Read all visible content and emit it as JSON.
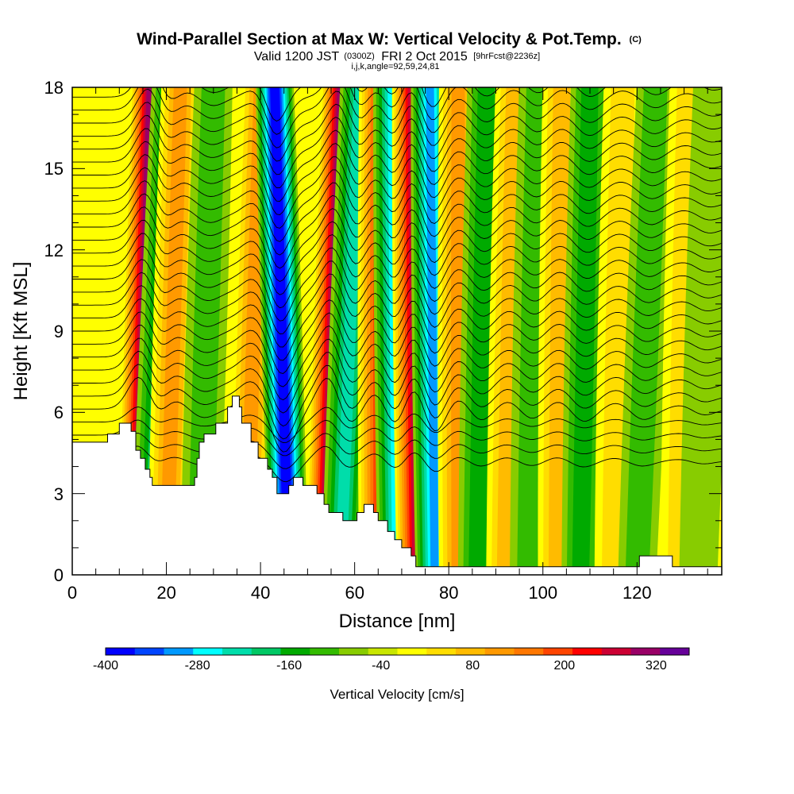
{
  "chart_data": {
    "type": "heatmap",
    "title": "Wind-Parallel Section at Max W: Vertical Velocity & Pot.Temp.",
    "title_unit": "(C)",
    "subtitle_valid": "Valid 1200 JST",
    "subtitle_utc": "(0300Z)",
    "subtitle_date": "FRI 2 Oct 2015",
    "subtitle_fcst": "[9hrFcst@2236z]",
    "subtitle_ijk": "i,j,k,angle=92,59,24,81",
    "xlabel": "Distance [nm]",
    "ylabel": "Height [Kft MSL]",
    "xlim": [
      0,
      138
    ],
    "ylim": [
      0,
      18
    ],
    "x_ticks": [
      "0",
      "20",
      "40",
      "60",
      "80",
      "100",
      "120"
    ],
    "x_tick_values": [
      0,
      20,
      40,
      60,
      80,
      100,
      120
    ],
    "y_ticks": [
      "0",
      "3",
      "6",
      "9",
      "12",
      "15",
      "18"
    ],
    "y_tick_values": [
      0,
      3,
      6,
      9,
      12,
      15,
      18
    ],
    "colorbar": {
      "title": "Vertical Velocity [cm/s]",
      "min": -400,
      "max": 360,
      "step": 40,
      "labels": [
        "-400",
        "-280",
        "-160",
        "-40",
        "80",
        "200",
        "320"
      ],
      "label_values": [
        -400,
        -280,
        -160,
        -40,
        80,
        200,
        320
      ],
      "colors": [
        "#0000ff",
        "#0044ff",
        "#0099ff",
        "#00ffff",
        "#00ddaa",
        "#00c864",
        "#00aa00",
        "#33bb00",
        "#88cc00",
        "#c8e600",
        "#ffff00",
        "#ffdd00",
        "#ffbb00",
        "#ff9900",
        "#ff7700",
        "#ff4400",
        "#ff0000",
        "#cc0033",
        "#990066",
        "#660099"
      ]
    },
    "wave_bands": [
      {
        "kind": "up",
        "x_bottom": 13.5,
        "x_top": 16.5,
        "peak_cm_s": 340
      },
      {
        "kind": "down",
        "x_bottom": 16.5,
        "x_top": 21,
        "peak_cm_s": -160
      },
      {
        "kind": "up",
        "x_bottom": 20,
        "x_top": 23,
        "peak_cm_s": 120
      },
      {
        "kind": "down",
        "x_bottom": 27,
        "x_top": 30,
        "peak_cm_s": -80
      },
      {
        "kind": "up",
        "x_bottom": 37,
        "x_top": 40,
        "peak_cm_s": 140
      },
      {
        "kind": "down",
        "x_bottom": 46,
        "x_top": 43,
        "peak_cm_s": -400
      },
      {
        "kind": "up",
        "x_bottom": 53.5,
        "x_top": 57,
        "peak_cm_s": 340
      },
      {
        "kind": "down",
        "x_bottom": 57,
        "x_top": 61,
        "peak_cm_s": -200
      },
      {
        "kind": "up",
        "x_bottom": 65,
        "x_top": 65,
        "peak_cm_s": 200
      },
      {
        "kind": "down",
        "x_bottom": 69,
        "x_top": 68,
        "peak_cm_s": -260
      },
      {
        "kind": "up",
        "x_bottom": 73,
        "x_top": 72,
        "peak_cm_s": 300
      },
      {
        "kind": "down",
        "x_bottom": 77,
        "x_top": 76,
        "peak_cm_s": -280
      },
      {
        "kind": "up",
        "x_bottom": 82,
        "x_top": 82,
        "peak_cm_s": 120
      },
      {
        "kind": "down",
        "x_bottom": 86,
        "x_top": 88,
        "peak_cm_s": -120
      },
      {
        "kind": "up",
        "x_bottom": 92,
        "x_top": 94,
        "peak_cm_s": 80
      },
      {
        "kind": "down",
        "x_bottom": 97,
        "x_top": 99,
        "peak_cm_s": -100
      },
      {
        "kind": "up",
        "x_bottom": 103,
        "x_top": 104,
        "peak_cm_s": 80
      },
      {
        "kind": "down",
        "x_bottom": 108,
        "x_top": 110,
        "peak_cm_s": -120
      },
      {
        "kind": "up",
        "x_bottom": 115,
        "x_top": 117,
        "peak_cm_s": 60
      },
      {
        "kind": "down",
        "x_bottom": 120,
        "x_top": 124,
        "peak_cm_s": -100
      },
      {
        "kind": "up",
        "x_bottom": 129,
        "x_top": 131,
        "peak_cm_s": 40
      },
      {
        "kind": "down",
        "x_bottom": 133,
        "x_top": 136,
        "peak_cm_s": -60
      }
    ],
    "terrain": [
      [
        0,
        4.9
      ],
      [
        7.5,
        4.9
      ],
      [
        7.5,
        5.2
      ],
      [
        10,
        5.2
      ],
      [
        10,
        5.6
      ],
      [
        12.5,
        5.6
      ],
      [
        12.5,
        5.3
      ],
      [
        13.5,
        5.3
      ],
      [
        13.5,
        4.6
      ],
      [
        14.5,
        4.6
      ],
      [
        14.5,
        4.3
      ],
      [
        15.5,
        4.3
      ],
      [
        15.5,
        3.9
      ],
      [
        16.5,
        3.9
      ],
      [
        16.5,
        3.6
      ],
      [
        17,
        3.6
      ],
      [
        17,
        3.3
      ],
      [
        26,
        3.3
      ],
      [
        26,
        3.6
      ],
      [
        26.5,
        3.6
      ],
      [
        26.5,
        4.3
      ],
      [
        27,
        4.3
      ],
      [
        27,
        4.9
      ],
      [
        28,
        4.9
      ],
      [
        28,
        5.2
      ],
      [
        30.5,
        5.2
      ],
      [
        30.5,
        5.6
      ],
      [
        33,
        5.6
      ],
      [
        33,
        6.2
      ],
      [
        34,
        6.2
      ],
      [
        34,
        6.6
      ],
      [
        35.5,
        6.6
      ],
      [
        35.5,
        6.2
      ],
      [
        36,
        6.2
      ],
      [
        36,
        5.6
      ],
      [
        38,
        5.6
      ],
      [
        38,
        4.9
      ],
      [
        39.5,
        4.9
      ],
      [
        39.5,
        4.3
      ],
      [
        41.5,
        4.3
      ],
      [
        41.5,
        3.9
      ],
      [
        42.5,
        3.9
      ],
      [
        42.5,
        3.6
      ],
      [
        43.5,
        3.6
      ],
      [
        43.5,
        3.0
      ],
      [
        46,
        3.0
      ],
      [
        46,
        3.3
      ],
      [
        47,
        3.3
      ],
      [
        47,
        3.6
      ],
      [
        49,
        3.6
      ],
      [
        49,
        3.3
      ],
      [
        52,
        3.3
      ],
      [
        52,
        3.0
      ],
      [
        53.5,
        3.0
      ],
      [
        53.5,
        2.6
      ],
      [
        54.5,
        2.6
      ],
      [
        54.5,
        2.3
      ],
      [
        57.5,
        2.3
      ],
      [
        57.5,
        2.0
      ],
      [
        60.5,
        2.0
      ],
      [
        60.5,
        2.3
      ],
      [
        62,
        2.3
      ],
      [
        62,
        2.6
      ],
      [
        64,
        2.6
      ],
      [
        64,
        2.3
      ],
      [
        65,
        2.3
      ],
      [
        65,
        2.0
      ],
      [
        67,
        2.0
      ],
      [
        67,
        1.6
      ],
      [
        68.5,
        1.6
      ],
      [
        68.5,
        1.3
      ],
      [
        70,
        1.3
      ],
      [
        70,
        1.0
      ],
      [
        72,
        1.0
      ],
      [
        72,
        0.7
      ],
      [
        73,
        0.7
      ],
      [
        73,
        0.3
      ],
      [
        120.5,
        0.3
      ],
      [
        120.5,
        0.7
      ],
      [
        127.5,
        0.7
      ],
      [
        127.5,
        0.3
      ],
      [
        138,
        0.3
      ]
    ]
  }
}
